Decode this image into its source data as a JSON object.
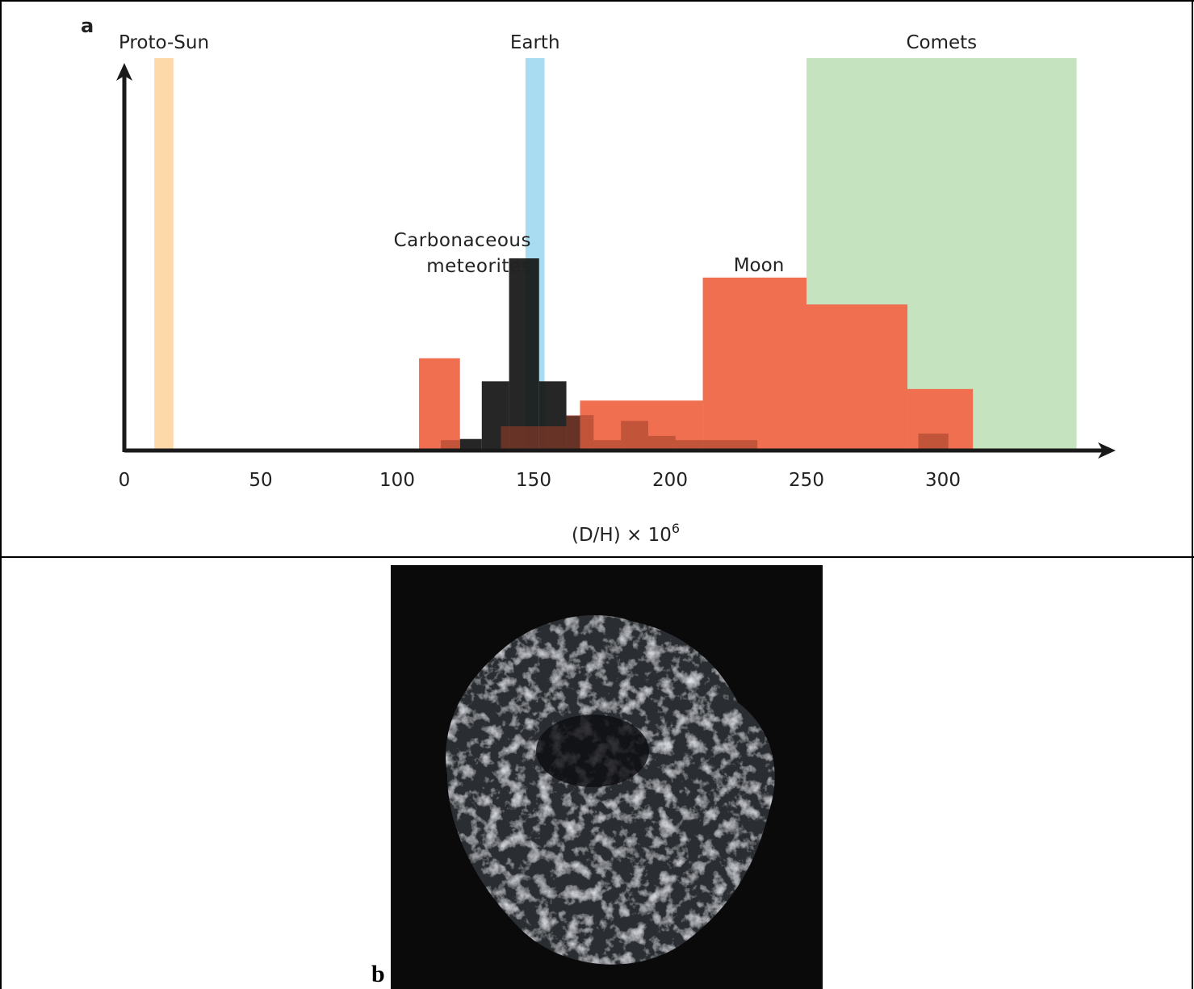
{
  "panel_labels": [
    "a",
    "b"
  ],
  "chart_data": {
    "type": "histogram",
    "x_label": "(D/H) × 10",
    "x_label_exponent": "6",
    "xlim": [
      0,
      365
    ],
    "ylim": [
      0,
      10
    ],
    "xticks": [
      0,
      50,
      100,
      150,
      200,
      250,
      300
    ],
    "ranges": [
      {
        "name": "Proto-Sun",
        "color": "#fdd8a8",
        "range": [
          11,
          18
        ]
      },
      {
        "name": "Earth",
        "color": "#a9dcf1",
        "range": [
          147,
          154
        ]
      },
      {
        "name": "Comets",
        "color": "#c5e3bf",
        "range": [
          250,
          349
        ]
      }
    ],
    "series": [
      {
        "name": "Carbonaceous meteorites",
        "color": "#141414",
        "bins": [
          123,
          131,
          141,
          152,
          162,
          167
        ],
        "values": [
          0.3,
          1.8,
          5,
          1.8,
          0.9
        ]
      },
      {
        "name": "Moon",
        "color": "#f06f50",
        "bins": [
          108,
          123,
          167,
          212,
          250,
          287,
          311
        ],
        "values": [
          2.4,
          0,
          1.3,
          4.5,
          3.8,
          1.6
        ]
      },
      {
        "color": "#9c3e26",
        "bins": [
          116,
          123,
          138,
          162,
          172,
          182,
          192,
          202,
          232,
          291,
          302,
          312
        ],
        "values": [
          0.27,
          0,
          0.63,
          0.92,
          0.27,
          0.77,
          0.38,
          0.27,
          0,
          0.44,
          0.04
        ]
      }
    ]
  }
}
